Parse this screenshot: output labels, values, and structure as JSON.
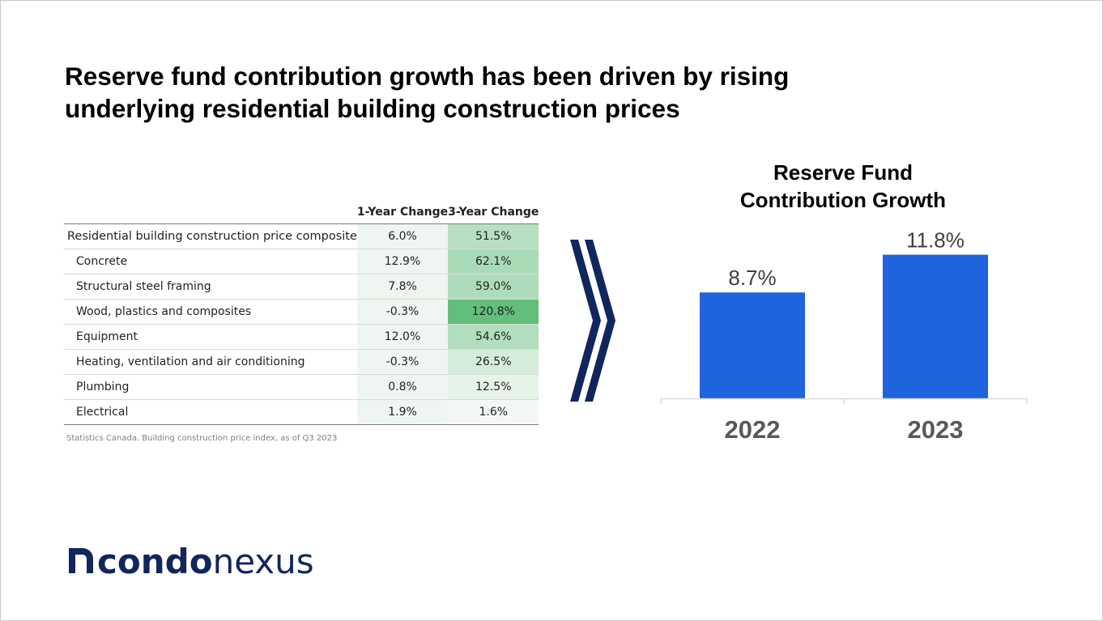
{
  "slide": {
    "title_line1": "Reserve fund contribution growth has been driven by rising",
    "title_line2": "underlying residential building construction prices"
  },
  "table": {
    "headers": [
      "",
      "1-Year Change",
      "3-Year Change"
    ],
    "rows": [
      {
        "name": "Residential building construction price composite",
        "one_year": "6.0%",
        "three_year": "51.5%",
        "three_year_value": 51.5,
        "main": true
      },
      {
        "name": "Concrete",
        "one_year": "12.9%",
        "three_year": "62.1%",
        "three_year_value": 62.1
      },
      {
        "name": "Structural steel framing",
        "one_year": "7.8%",
        "three_year": "59.0%",
        "three_year_value": 59.0
      },
      {
        "name": "Wood, plastics and composites",
        "one_year": "-0.3%",
        "three_year": "120.8%",
        "three_year_value": 120.8
      },
      {
        "name": "Equipment",
        "one_year": "12.0%",
        "three_year": "54.6%",
        "three_year_value": 54.6
      },
      {
        "name": "Heating, ventilation and air conditioning",
        "one_year": "-0.3%",
        "three_year": "26.5%",
        "three_year_value": 26.5
      },
      {
        "name": "Plumbing",
        "one_year": "0.8%",
        "three_year": "12.5%",
        "three_year_value": 12.5
      },
      {
        "name": "Electrical",
        "one_year": "1.9%",
        "three_year": "1.6%",
        "three_year_value": 1.6
      }
    ],
    "source": "Statistics Canada. Building construction price index, as of Q3 2023"
  },
  "colors": {
    "bar": "#1f63de",
    "one_year_cell": "#eff6f1",
    "heat_max": "#63be7b",
    "heat_min": "#f3f8f4",
    "brand": "#12265e"
  },
  "chart_data": {
    "type": "bar",
    "title": "Reserve Fund Contribution Growth",
    "title_line1": "Reserve Fund",
    "title_line2": "Contribution Growth",
    "categories": [
      "2022",
      "2023"
    ],
    "values": [
      8.7,
      11.8
    ],
    "data_labels": [
      "8.7%",
      "11.8%"
    ],
    "ylim": [
      0,
      14.5
    ],
    "xlabel": "",
    "ylabel": "",
    "grid": false,
    "legend": "none"
  },
  "logo": {
    "part1": "condo",
    "part2": "nexus",
    "icon": "n-arch-icon"
  }
}
